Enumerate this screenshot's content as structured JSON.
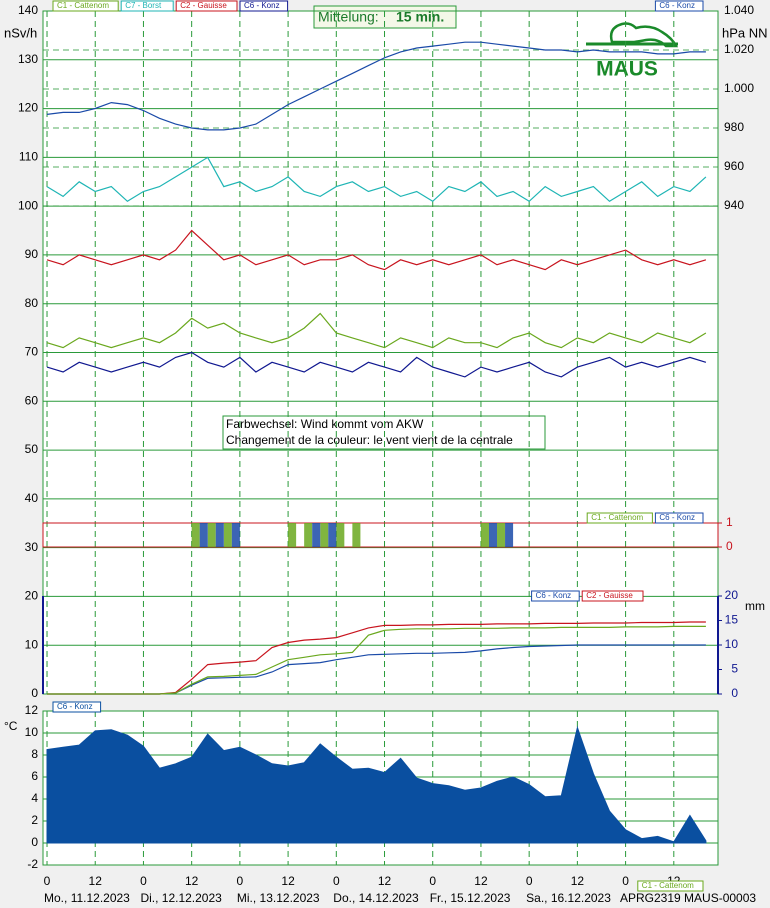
{
  "header": {
    "averaging_label": "Mittelung:",
    "averaging_value": "15 min.",
    "logo": "MAUS"
  },
  "footer": {
    "legend": "C1 - Cattenom",
    "id": "APRG2319 MAUS-00003",
    "days": [
      "Mo., 11.12.2023",
      "Di., 12.12.2023",
      "Mi., 13.12.2023",
      "Do., 14.12.2023",
      "Fr., 15.12.2023",
      "Sa., 16.12.2023"
    ]
  },
  "chart_data": [
    {
      "type": "line",
      "y_label": "nSv/h",
      "y2_label": "hPa NN",
      "annotation": [
        "Farbwechsel: Wind kommt vom AKW",
        "Changement de la couleur: le vent vient de la centrale"
      ],
      "xlim": [
        -1,
        167
      ],
      "xticks": [
        0,
        12,
        {
          "value": 24,
          "label": "0"
        },
        {
          "value": 36,
          "label": "12"
        },
        {
          "value": 48,
          "label": "0"
        },
        {
          "value": 60,
          "label": "12"
        },
        {
          "value": 72,
          "label": "0"
        },
        {
          "value": 84,
          "label": "12"
        },
        {
          "value": 96,
          "label": "0"
        },
        {
          "value": 108,
          "label": "12"
        },
        {
          "value": 120,
          "label": "0"
        },
        {
          "value": 132,
          "label": "12"
        },
        {
          "value": 144,
          "label": "0"
        },
        {
          "value": 156,
          "label": "12"
        }
      ],
      "ylim": [
        0,
        140
      ],
      "yticks": [
        0,
        10,
        20,
        30,
        40,
        50,
        60,
        70,
        80,
        90,
        100,
        110,
        120,
        130,
        140
      ],
      "y2lim": [
        940,
        1040
      ],
      "y2ticks": [
        940,
        960,
        980,
        {
          "value": 1000,
          "label": "1.000"
        },
        {
          "value": 1020,
          "label": "1.020"
        },
        {
          "value": 1040,
          "label": "1.040"
        }
      ],
      "x": [
        0,
        4,
        8,
        12,
        16,
        20,
        24,
        28,
        32,
        36,
        40,
        44,
        48,
        52,
        56,
        60,
        64,
        68,
        72,
        76,
        80,
        84,
        88,
        92,
        96,
        100,
        104,
        108,
        112,
        116,
        120,
        124,
        128,
        132,
        136,
        140,
        144,
        148,
        152,
        156,
        160,
        164
      ],
      "series": [
        {
          "name": "C1 - Cattenom",
          "color": "#6aa81e",
          "values": [
            72,
            71,
            73,
            72,
            71,
            72,
            73,
            72,
            74,
            77,
            75,
            76,
            74,
            73,
            72,
            73,
            75,
            78,
            74,
            73,
            72,
            71,
            73,
            72,
            71,
            73,
            72,
            72,
            71,
            73,
            74,
            72,
            71,
            73,
            72,
            74,
            73,
            72,
            74,
            73,
            72,
            74
          ]
        },
        {
          "name": "C7 - Borst",
          "color": "#1fb5b5",
          "values": [
            104,
            102,
            105,
            103,
            104,
            101,
            103,
            104,
            106,
            108,
            110,
            104,
            105,
            103,
            104,
            106,
            103,
            102,
            104,
            105,
            103,
            104,
            102,
            103,
            101,
            104,
            103,
            105,
            102,
            103,
            101,
            104,
            102,
            103,
            104,
            101,
            103,
            105,
            102,
            104,
            103,
            106
          ]
        },
        {
          "name": "C2 - Gauisse",
          "color": "#c8141e",
          "values": [
            89,
            88,
            90,
            89,
            88,
            89,
            90,
            89,
            91,
            95,
            92,
            89,
            90,
            88,
            89,
            90,
            88,
            89,
            89,
            90,
            88,
            87,
            89,
            88,
            89,
            88,
            89,
            90,
            88,
            89,
            88,
            87,
            89,
            88,
            89,
            90,
            91,
            89,
            88,
            89,
            88,
            89
          ]
        },
        {
          "name": "C6 - Konz",
          "color": "#101890",
          "values": [
            67,
            66,
            68,
            67,
            66,
            67,
            68,
            67,
            69,
            70,
            68,
            67,
            69,
            66,
            68,
            67,
            66,
            68,
            67,
            66,
            68,
            67,
            66,
            69,
            67,
            66,
            65,
            67,
            66,
            67,
            68,
            66,
            65,
            67,
            68,
            69,
            67,
            68,
            67,
            68,
            69,
            68
          ]
        },
        {
          "name": "C6 - Konz",
          "color": "#1a4aa8",
          "axis": "y2",
          "values": [
            987,
            988,
            988,
            990,
            993,
            992,
            989,
            985,
            982,
            980,
            979,
            979,
            980,
            982,
            987,
            992,
            996,
            1000,
            1004,
            1008,
            1012,
            1016,
            1019,
            1021,
            1022,
            1023,
            1024,
            1024,
            1023,
            1022,
            1021,
            1020,
            1020,
            1019,
            1020,
            1019,
            1019,
            1019,
            1018,
            1018,
            1019,
            1019
          ]
        }
      ]
    },
    {
      "type": "bar",
      "xlim": [
        -1,
        167
      ],
      "ylim": [
        0,
        1
      ],
      "yticks": [
        0,
        1
      ],
      "x": [
        0,
        4,
        8,
        12,
        16,
        20,
        24,
        28,
        32,
        36,
        40,
        44,
        48,
        52,
        56,
        60,
        64,
        68,
        72,
        76,
        80,
        84,
        88,
        92,
        96,
        100,
        104,
        108,
        112,
        116,
        120,
        124,
        128,
        132,
        136,
        140,
        144,
        148,
        152,
        156,
        160,
        164
      ],
      "series": [
        {
          "name": "C1 - Cattenom",
          "color": "#6aa81e",
          "values": [
            0,
            0,
            0,
            0,
            0,
            0,
            0,
            0,
            0,
            1,
            1,
            1,
            0,
            0,
            0,
            1,
            1,
            1,
            1,
            1,
            0,
            0,
            0,
            0,
            0,
            0,
            0,
            1,
            1,
            0,
            0,
            0,
            0,
            0,
            0,
            0,
            0,
            0,
            0,
            0,
            0,
            0
          ]
        },
        {
          "name": "C6 - Konz",
          "color": "#1a4aa8",
          "values": [
            0,
            0,
            0,
            0,
            0,
            0,
            0,
            0,
            0,
            1,
            1,
            1,
            0,
            0,
            0,
            0,
            1,
            1,
            0,
            0,
            0,
            0,
            0,
            0,
            0,
            0,
            0,
            1,
            1,
            0,
            0,
            0,
            0,
            0,
            0,
            0,
            0,
            0,
            0,
            0,
            0,
            0
          ]
        }
      ]
    },
    {
      "type": "line",
      "y_label": "mm",
      "xlim": [
        -1,
        167
      ],
      "ylim": [
        0,
        20
      ],
      "yticks": [
        0,
        5,
        10,
        15,
        20
      ],
      "x": [
        0,
        4,
        8,
        12,
        16,
        20,
        24,
        28,
        32,
        36,
        40,
        44,
        48,
        52,
        56,
        60,
        64,
        68,
        72,
        76,
        80,
        84,
        88,
        92,
        96,
        100,
        104,
        108,
        112,
        116,
        120,
        124,
        128,
        132,
        136,
        140,
        144,
        148,
        152,
        156,
        160,
        164
      ],
      "series": [
        {
          "name": "C6 - Konz",
          "color": "#1a4aa8",
          "values": [
            0,
            0,
            0,
            0,
            0,
            0,
            0,
            0,
            0.2,
            1.8,
            3.2,
            3.3,
            3.4,
            3.5,
            4.5,
            6,
            6.2,
            6.4,
            7,
            7.5,
            8,
            8.1,
            8.2,
            8.3,
            8.3,
            8.4,
            8.5,
            8.8,
            9.2,
            9.5,
            9.7,
            9.8,
            9.9,
            10,
            10,
            10,
            10,
            10,
            10,
            10,
            10,
            10
          ]
        },
        {
          "name": "C2 - Gauisse",
          "color": "#c8141e",
          "values": [
            0,
            0,
            0,
            0,
            0,
            0,
            0,
            0,
            0.3,
            3,
            6,
            6.3,
            6.5,
            6.8,
            9.5,
            10.5,
            11,
            11.2,
            11.5,
            12.5,
            13.5,
            14,
            14,
            14.1,
            14.1,
            14.2,
            14.2,
            14.2,
            14.3,
            14.3,
            14.3,
            14.4,
            14.4,
            14.4,
            14.5,
            14.5,
            14.5,
            14.6,
            14.6,
            14.6,
            14.7,
            14.7
          ]
        },
        {
          "color": "#6aa81e",
          "values": [
            0,
            0,
            0,
            0,
            0,
            0,
            0,
            0,
            0.2,
            2,
            3.5,
            3.6,
            3.8,
            4,
            5.5,
            7,
            7.5,
            8,
            8.2,
            8.5,
            12,
            13,
            13.2,
            13.3,
            13.3,
            13.3,
            13.4,
            13.4,
            13.4,
            13.5,
            13.5,
            13.5,
            13.6,
            13.6,
            13.6,
            13.6,
            13.7,
            13.7,
            13.7,
            13.8,
            13.8,
            13.8
          ]
        }
      ]
    },
    {
      "type": "area",
      "y_label": "°C",
      "xlim": [
        -1,
        167
      ],
      "ylim": [
        -2,
        12
      ],
      "yticks": [
        -2,
        0,
        2,
        4,
        6,
        8,
        10,
        12
      ],
      "x": [
        0,
        4,
        8,
        12,
        16,
        20,
        24,
        28,
        32,
        36,
        40,
        44,
        48,
        52,
        56,
        60,
        64,
        68,
        72,
        76,
        80,
        84,
        88,
        92,
        96,
        100,
        104,
        108,
        112,
        116,
        120,
        124,
        128,
        132,
        136,
        140,
        144,
        148,
        152,
        156,
        160,
        164
      ],
      "series": [
        {
          "name": "C6 - Konz",
          "color": "#0a4fa0",
          "values": [
            8.5,
            8.7,
            8.9,
            10.2,
            10.3,
            9.8,
            8.8,
            6.8,
            7.2,
            7.8,
            9.9,
            8.4,
            8.7,
            8.0,
            7.2,
            7.0,
            7.3,
            9.0,
            7.8,
            6.7,
            6.8,
            6.4,
            7.7,
            5.9,
            5.4,
            5.2,
            4.8,
            5.0,
            5.6,
            6.0,
            5.3,
            4.2,
            4.3,
            10.5,
            6.3,
            2.9,
            1.2,
            0.4,
            0.6,
            0.1,
            2.5,
            0.2
          ]
        }
      ]
    }
  ]
}
